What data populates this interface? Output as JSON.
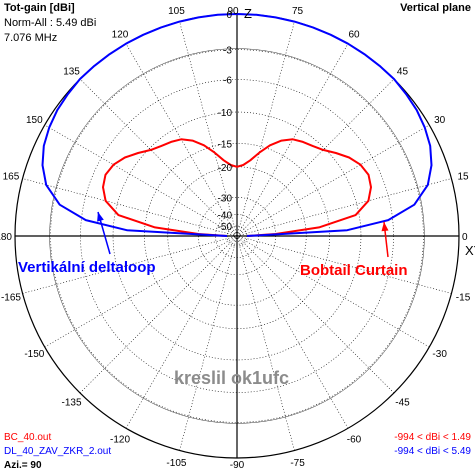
{
  "header": {
    "title": "Tot-gain [dBi]",
    "norm": "Norm-All : 5.49 dBi",
    "freq": "7.076 MHz",
    "plane": "Vertical plane"
  },
  "axis_letters": {
    "top": "Z",
    "right": "XY"
  },
  "angle_labels": [
    "90",
    "75",
    "60",
    "45",
    "30",
    "15",
    "0",
    "-15",
    "-30",
    "-45",
    "-60",
    "-75",
    "-90",
    "-105",
    "-120",
    "-135",
    "-150",
    "-165",
    "180",
    "165",
    "150",
    "135",
    "120",
    "105"
  ],
  "annotations": {
    "left": "Vertikální deltaloop",
    "right": "Bobtail Curtain",
    "watermark": "kreslil ok1ufc"
  },
  "footer": {
    "file1": "BC_40.out",
    "file2": "DL_40_ZAV_ZKR_2.out",
    "azi": "Azi.= 90",
    "range1": "-994 < dBi < 1.49",
    "range2": "-994 < dBi < 5.49"
  },
  "colors": {
    "series1": "#ff0000",
    "series2": "#0000ff",
    "annot_left": "#0000ff",
    "annot_right": "#ff0000",
    "grid": "#000000"
  },
  "chart_data": {
    "type": "polar",
    "title": "Tot-gain [dBi]",
    "radial_ticks": [
      "0",
      "-3",
      "-6",
      "-10",
      "-15",
      "-20",
      "-30",
      "-40",
      "-50"
    ],
    "radial_tick_values": [
      0,
      -3,
      -6,
      -10,
      -15,
      -20,
      -30,
      -40,
      -50
    ],
    "angle_unit": "elevation degrees (0 = horizon, 90 = zenith)",
    "series": [
      {
        "name": "BC_40.out",
        "color": "#ff0000",
        "elevation_deg": [
          0,
          3,
          6,
          10,
          15,
          20,
          25,
          30,
          35,
          40,
          45,
          50,
          55,
          60,
          65,
          70,
          75,
          80,
          85,
          90
        ],
        "gain_db": [
          -50,
          -30,
          -17,
          -10.5,
          -8.4,
          -7.6,
          -7.3,
          -7.6,
          -8.3,
          -9.3,
          -10.3,
          -10.9,
          -11.3,
          -11.8,
          -12.8,
          -14.3,
          -16.2,
          -18.2,
          -19.5,
          -20
        ],
        "symmetric": true
      },
      {
        "name": "DL_40_ZAV_ZKR_2.out",
        "color": "#0000ff",
        "elevation_deg": [
          0,
          3,
          6,
          10,
          15,
          20,
          25,
          30,
          35,
          40,
          45,
          50,
          55,
          60,
          65,
          70,
          75,
          80,
          85,
          90
        ],
        "gain_db": [
          -50,
          -12,
          -6.5,
          -3.6,
          -2,
          -1.2,
          -0.7,
          -0.4,
          -0.2,
          -0.1,
          0,
          0,
          0,
          0,
          0,
          0,
          0,
          0,
          0,
          0
        ],
        "symmetric": true
      }
    ]
  }
}
